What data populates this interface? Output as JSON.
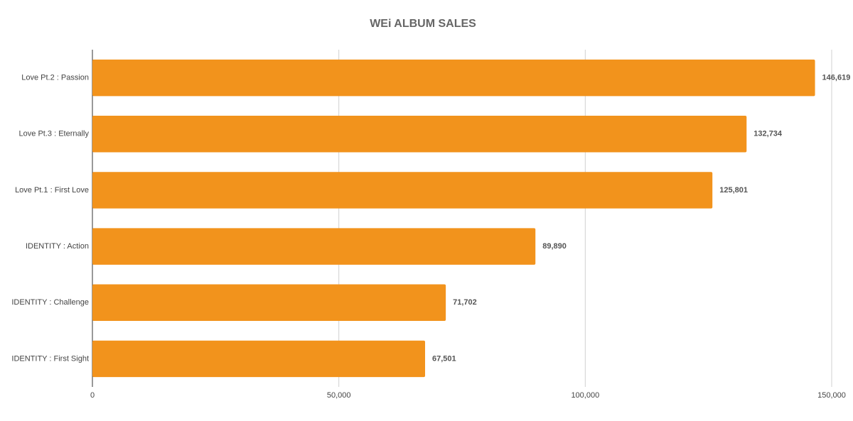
{
  "chart_data": {
    "type": "bar",
    "orientation": "horizontal",
    "title": "WEi ALBUM SALES",
    "categories": [
      "Love Pt.2 : Passion",
      "Love Pt.3 : Eternally",
      "Love Pt.1 : First Love",
      "IDENTITY : Action",
      "IDENTITY : Challenge",
      "IDENTITY : First Sight"
    ],
    "values": [
      146619,
      132734,
      125801,
      89890,
      71702,
      67501
    ],
    "value_labels": [
      "146,619",
      "132,734",
      "125,801",
      "89,890",
      "71,702",
      "67,501"
    ],
    "color": "#f2931c",
    "xlim": [
      0,
      150000
    ],
    "xticks": [
      0,
      {
        "value": 50000,
        "label": "50,000"
      },
      {
        "value": 100000,
        "label": "100,000"
      },
      {
        "value": 150000,
        "label": "150,000"
      }
    ],
    "grid": true
  }
}
